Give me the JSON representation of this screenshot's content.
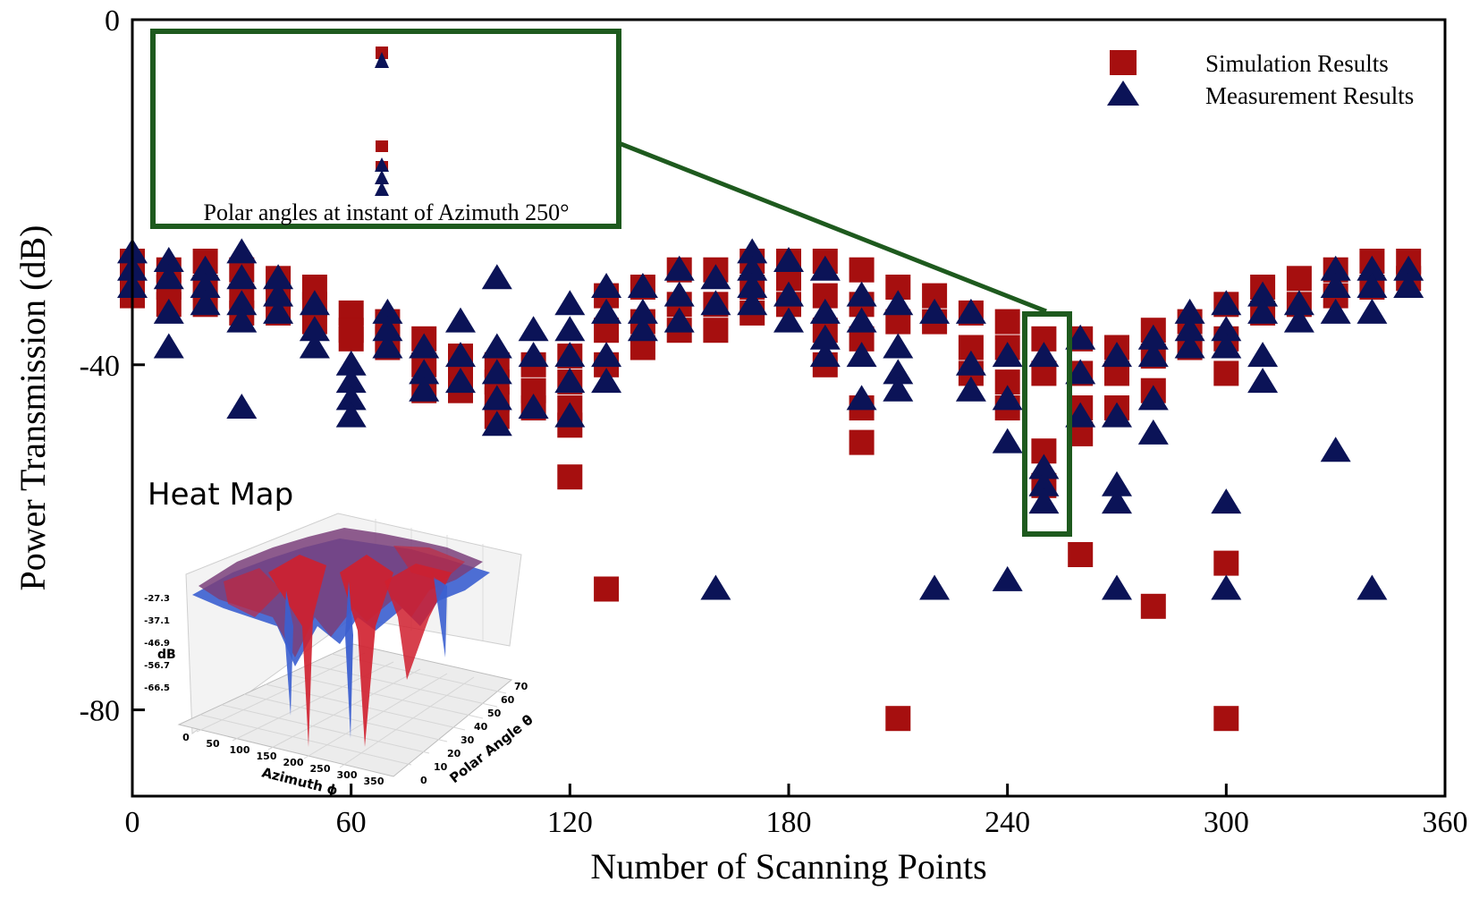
{
  "chart_data": {
    "type": "scatter",
    "xlabel": "Number of Scanning Points",
    "ylabel": "Power Transmission (dB)",
    "xlim": [
      0,
      360
    ],
    "ylim": [
      -90,
      0
    ],
    "x_ticks": [
      "0",
      "60",
      "120",
      "180",
      "240",
      "300",
      "360"
    ],
    "y_ticks": [
      "0",
      "-40",
      "-80"
    ],
    "legend_position": "top-right",
    "series": [
      {
        "name": "Simulation Results",
        "marker": "square",
        "color": "#a60f0f",
        "points": [
          [
            0,
            -28
          ],
          [
            0,
            -30
          ],
          [
            0,
            -32
          ],
          [
            10,
            -29
          ],
          [
            10,
            -31
          ],
          [
            10,
            -33
          ],
          [
            20,
            -28
          ],
          [
            20,
            -31
          ],
          [
            20,
            -33
          ],
          [
            30,
            -29
          ],
          [
            30,
            -32
          ],
          [
            30,
            -34
          ],
          [
            40,
            -30
          ],
          [
            40,
            -32
          ],
          [
            40,
            -34
          ],
          [
            50,
            -31
          ],
          [
            50,
            -33
          ],
          [
            50,
            -35
          ],
          [
            60,
            -34
          ],
          [
            60,
            -36
          ],
          [
            60,
            -37
          ],
          [
            70,
            -35
          ],
          [
            70,
            -37
          ],
          [
            70,
            -38
          ],
          [
            80,
            -37
          ],
          [
            80,
            -40
          ],
          [
            80,
            -43
          ],
          [
            90,
            -39
          ],
          [
            90,
            -41
          ],
          [
            90,
            -43
          ],
          [
            100,
            -40
          ],
          [
            100,
            -42
          ],
          [
            100,
            -44
          ],
          [
            100,
            -46
          ],
          [
            110,
            -40
          ],
          [
            110,
            -43
          ],
          [
            110,
            -45
          ],
          [
            120,
            -39
          ],
          [
            120,
            -42
          ],
          [
            120,
            -45
          ],
          [
            120,
            -47
          ],
          [
            120,
            -53
          ],
          [
            130,
            -32
          ],
          [
            130,
            -36
          ],
          [
            130,
            -40
          ],
          [
            130,
            -66
          ],
          [
            140,
            -31
          ],
          [
            140,
            -35
          ],
          [
            140,
            -38
          ],
          [
            150,
            -29
          ],
          [
            150,
            -33
          ],
          [
            150,
            -36
          ],
          [
            160,
            -29
          ],
          [
            160,
            -33
          ],
          [
            160,
            -36
          ],
          [
            170,
            -28
          ],
          [
            170,
            -31
          ],
          [
            170,
            -34
          ],
          [
            180,
            -28
          ],
          [
            180,
            -30
          ],
          [
            180,
            -33
          ],
          [
            190,
            -28
          ],
          [
            190,
            -32
          ],
          [
            190,
            -36
          ],
          [
            190,
            -40
          ],
          [
            200,
            -29
          ],
          [
            200,
            -33
          ],
          [
            200,
            -37
          ],
          [
            200,
            -45
          ],
          [
            200,
            -49
          ],
          [
            210,
            -31
          ],
          [
            210,
            -35
          ],
          [
            210,
            -81
          ],
          [
            220,
            -32
          ],
          [
            220,
            -35
          ],
          [
            230,
            -34
          ],
          [
            230,
            -38
          ],
          [
            230,
            -41
          ],
          [
            240,
            -35
          ],
          [
            240,
            -38
          ],
          [
            240,
            -42
          ],
          [
            240,
            -45
          ],
          [
            250,
            -37
          ],
          [
            250,
            -41
          ],
          [
            250,
            -50
          ],
          [
            250,
            -54
          ],
          [
            260,
            -37
          ],
          [
            260,
            -41
          ],
          [
            260,
            -45
          ],
          [
            260,
            -48
          ],
          [
            260,
            -62
          ],
          [
            270,
            -38
          ],
          [
            270,
            -41
          ],
          [
            270,
            -45
          ],
          [
            280,
            -36
          ],
          [
            280,
            -39
          ],
          [
            280,
            -43
          ],
          [
            280,
            -68
          ],
          [
            290,
            -35
          ],
          [
            290,
            -38
          ],
          [
            300,
            -33
          ],
          [
            300,
            -37
          ],
          [
            300,
            -41
          ],
          [
            300,
            -63
          ],
          [
            300,
            -81
          ],
          [
            310,
            -31
          ],
          [
            310,
            -34
          ],
          [
            320,
            -30
          ],
          [
            320,
            -33
          ],
          [
            330,
            -29
          ],
          [
            330,
            -32
          ],
          [
            340,
            -28
          ],
          [
            340,
            -31
          ],
          [
            350,
            -28
          ],
          [
            350,
            -30
          ]
        ]
      },
      {
        "name": "Measurement Results",
        "marker": "triangle",
        "color": "#0b1357",
        "points": [
          [
            0,
            -27
          ],
          [
            0,
            -29
          ],
          [
            0,
            -31
          ],
          [
            10,
            -28
          ],
          [
            10,
            -30
          ],
          [
            10,
            -34
          ],
          [
            10,
            -38
          ],
          [
            20,
            -29
          ],
          [
            20,
            -31
          ],
          [
            20,
            -33
          ],
          [
            30,
            -27
          ],
          [
            30,
            -30
          ],
          [
            30,
            -33
          ],
          [
            30,
            -35
          ],
          [
            30,
            -45
          ],
          [
            40,
            -30
          ],
          [
            40,
            -32
          ],
          [
            40,
            -34
          ],
          [
            50,
            -33
          ],
          [
            50,
            -36
          ],
          [
            50,
            -38
          ],
          [
            60,
            -40
          ],
          [
            60,
            -42
          ],
          [
            60,
            -44
          ],
          [
            60,
            -46
          ],
          [
            70,
            -34
          ],
          [
            70,
            -36
          ],
          [
            70,
            -38
          ],
          [
            80,
            -38
          ],
          [
            80,
            -41
          ],
          [
            80,
            -43
          ],
          [
            90,
            -35
          ],
          [
            90,
            -39
          ],
          [
            90,
            -42
          ],
          [
            100,
            -30
          ],
          [
            100,
            -38
          ],
          [
            100,
            -41
          ],
          [
            100,
            -44
          ],
          [
            100,
            -47
          ],
          [
            110,
            -36
          ],
          [
            110,
            -39
          ],
          [
            110,
            -45
          ],
          [
            120,
            -33
          ],
          [
            120,
            -36
          ],
          [
            120,
            -39
          ],
          [
            120,
            -42
          ],
          [
            120,
            -46
          ],
          [
            130,
            -31
          ],
          [
            130,
            -34
          ],
          [
            130,
            -39
          ],
          [
            130,
            -42
          ],
          [
            140,
            -31
          ],
          [
            140,
            -34
          ],
          [
            140,
            -36
          ],
          [
            150,
            -29
          ],
          [
            150,
            -32
          ],
          [
            150,
            -35
          ],
          [
            160,
            -30
          ],
          [
            160,
            -33
          ],
          [
            160,
            -66
          ],
          [
            170,
            -27
          ],
          [
            170,
            -29
          ],
          [
            170,
            -31
          ],
          [
            170,
            -33
          ],
          [
            180,
            -28
          ],
          [
            180,
            -32
          ],
          [
            180,
            -35
          ],
          [
            190,
            -29
          ],
          [
            190,
            -34
          ],
          [
            190,
            -37
          ],
          [
            190,
            -39
          ],
          [
            200,
            -32
          ],
          [
            200,
            -35
          ],
          [
            200,
            -39
          ],
          [
            200,
            -44
          ],
          [
            210,
            -33
          ],
          [
            210,
            -38
          ],
          [
            210,
            -41
          ],
          [
            210,
            -43
          ],
          [
            220,
            -34
          ],
          [
            220,
            -66
          ],
          [
            230,
            -34
          ],
          [
            230,
            -40
          ],
          [
            230,
            -43
          ],
          [
            240,
            -39
          ],
          [
            240,
            -44
          ],
          [
            240,
            -49
          ],
          [
            240,
            -65
          ],
          [
            250,
            -39
          ],
          [
            250,
            -52
          ],
          [
            250,
            -54
          ],
          [
            250,
            -56
          ],
          [
            260,
            -37
          ],
          [
            260,
            -41
          ],
          [
            260,
            -46
          ],
          [
            270,
            -39
          ],
          [
            270,
            -46
          ],
          [
            270,
            -54
          ],
          [
            270,
            -56
          ],
          [
            270,
            -66
          ],
          [
            280,
            -37
          ],
          [
            280,
            -39
          ],
          [
            280,
            -44
          ],
          [
            280,
            -48
          ],
          [
            290,
            -34
          ],
          [
            290,
            -36
          ],
          [
            290,
            -38
          ],
          [
            300,
            -33
          ],
          [
            300,
            -36
          ],
          [
            300,
            -38
          ],
          [
            300,
            -56
          ],
          [
            300,
            -66
          ],
          [
            310,
            -32
          ],
          [
            310,
            -34
          ],
          [
            310,
            -39
          ],
          [
            310,
            -42
          ],
          [
            320,
            -33
          ],
          [
            320,
            -35
          ],
          [
            330,
            -29
          ],
          [
            330,
            -31
          ],
          [
            330,
            -34
          ],
          [
            330,
            -50
          ],
          [
            340,
            -29
          ],
          [
            340,
            -31
          ],
          [
            340,
            -34
          ],
          [
            340,
            -66
          ],
          [
            350,
            -29
          ],
          [
            350,
            -31
          ]
        ]
      }
    ],
    "annotations": {
      "zoom_box_label": "Polar angles at instant of Azimuth 250°",
      "zoom_target_x": 250
    }
  },
  "inset": {
    "title": "Heat Map",
    "z_label": "dB",
    "z_ticks": [
      "-27.3",
      "-37.1",
      "-46.9",
      "-56.7",
      "-66.5"
    ],
    "x_label": "Azimuth ϕ",
    "x_ticks": [
      "0",
      "50",
      "100",
      "150",
      "200",
      "250",
      "300",
      "350"
    ],
    "y_label": "Polar Angle θ",
    "y_ticks": [
      "0",
      "10",
      "20",
      "30",
      "40",
      "50",
      "60",
      "70"
    ]
  },
  "colors": {
    "axis": "#000000",
    "zoom_box": "#1e5a1e",
    "surface_blue": "#3b5fd0",
    "surface_red": "#d01f2e",
    "surface_purple": "#7a3f7a"
  }
}
